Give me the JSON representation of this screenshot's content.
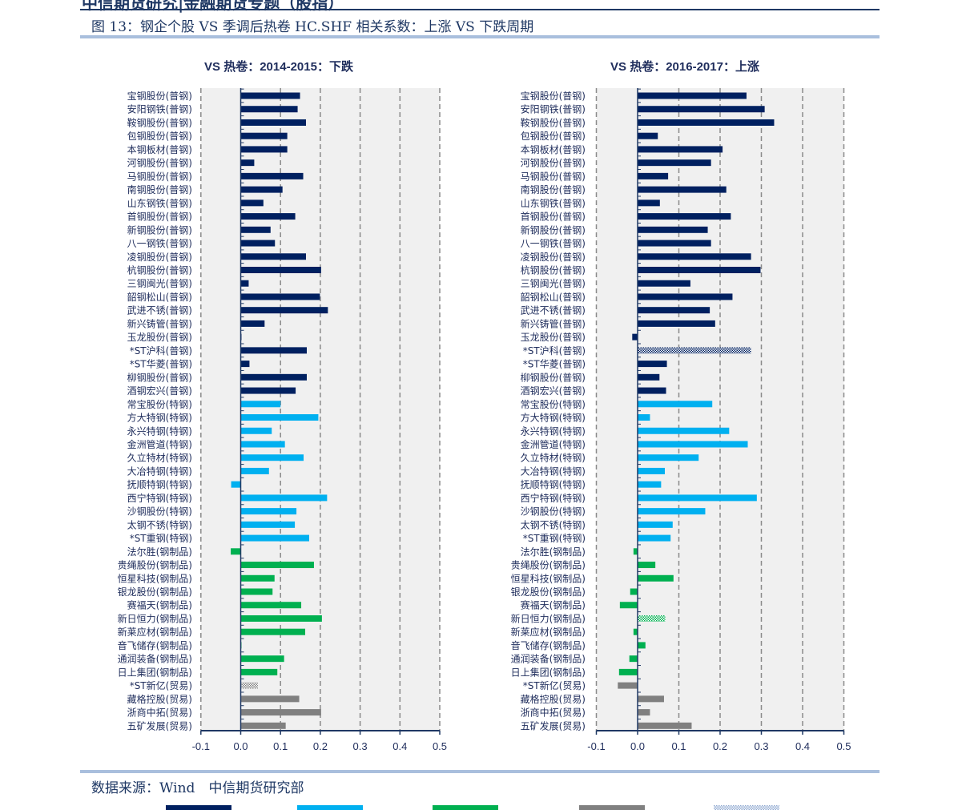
{
  "header": {
    "clipped_text": "中信期货研究|金融期货专题（股指）",
    "figure_title": "图 13：钢企个股 VS 季调后热卷 HC.SHF 相关系数：上涨 VS 下跌周期"
  },
  "source": "数据来源：Wind　中信期货研究部",
  "colors": {
    "普钢": "#002060",
    "特钢": "#00b0f0",
    "钢制品": "#00b050",
    "贸易": "#808080",
    "axis": "#1f3864",
    "plot_bg": "#f0f0f0"
  },
  "chart_data": [
    {
      "type": "bar",
      "orientation": "horizontal",
      "title": "VS 热卷：2014-2015：下跌",
      "xlim": [
        -0.1,
        0.5
      ],
      "xticks": [
        "-0.1",
        "0.0",
        "0.1",
        "0.2",
        "0.3",
        "0.4",
        "0.5"
      ],
      "grid": true,
      "categories": [
        "宝钢股份(普钢)",
        "安阳钢铁(普钢)",
        "鞍钢股份(普钢)",
        "包钢股份(普钢)",
        "本钢板材(普钢)",
        "河钢股份(普钢)",
        "马钢股份(普钢)",
        "南钢股份(普钢)",
        "山东钢铁(普钢)",
        "首钢股份(普钢)",
        "新钢股份(普钢)",
        "八一钢铁(普钢)",
        "凌钢股份(普钢)",
        "杭钢股份(普钢)",
        "三钢闽光(普钢)",
        "韶钢松山(普钢)",
        "武进不锈(普钢)",
        "新兴铸管(普钢)",
        "玉龙股份(普钢)",
        "*ST沪科(普钢)",
        "*ST华菱(普钢)",
        "柳钢股份(普钢)",
        "酒钢宏兴(普钢)",
        "常宝股份(特钢)",
        "方大特钢(特钢)",
        "永兴特钢(特钢)",
        "金洲管道(特钢)",
        "久立特材(特钢)",
        "大冶特钢(特钢)",
        "抚顺特钢(特钢)",
        "西宁特钢(特钢)",
        "沙钢股份(特钢)",
        "太钢不锈(特钢)",
        "*ST重钢(特钢)",
        "法尔胜(钢制品)",
        "贵绳股份(钢制品)",
        "恒星科技(钢制品)",
        "银龙股份(钢制品)",
        "赛福天(钢制品)",
        "新日恒力(钢制品)",
        "新莱应材(钢制品)",
        "音飞储存(钢制品)",
        "通润装备(钢制品)",
        "日上集团(钢制品)",
        "*ST新亿(贸易)",
        "藏格控股(贸易)",
        "浙商中拓(贸易)",
        "五矿发展(贸易)"
      ],
      "values": [
        0.149,
        0.143,
        0.164,
        0.117,
        0.117,
        0.034,
        0.157,
        0.105,
        0.057,
        0.137,
        0.075,
        0.086,
        0.164,
        0.202,
        0.02,
        0.199,
        0.219,
        0.06,
        0.002,
        0.166,
        0.022,
        0.166,
        0.138,
        0.1,
        0.195,
        0.078,
        0.111,
        0.158,
        0.071,
        -0.024,
        0.217,
        0.14,
        0.136,
        0.172,
        -0.025,
        0.184,
        0.085,
        0.08,
        0.152,
        0.204,
        0.162,
        0.0,
        0.109,
        0.092,
        0.043,
        0.147,
        0.202,
        0.113
      ],
      "hatched": [
        "*ST新亿(贸易)"
      ]
    },
    {
      "type": "bar",
      "orientation": "horizontal",
      "title": "VS 热卷：2016-2017：上涨",
      "xlim": [
        -0.1,
        0.5
      ],
      "xticks": [
        "-0.1",
        "0.0",
        "0.1",
        "0.2",
        "0.3",
        "0.4",
        "0.5"
      ],
      "grid": true,
      "categories": [
        "宝钢股份(普钢)",
        "安阳钢铁(普钢)",
        "鞍钢股份(普钢)",
        "包钢股份(普钢)",
        "本钢板材(普钢)",
        "河钢股份(普钢)",
        "马钢股份(普钢)",
        "南钢股份(普钢)",
        "山东钢铁(普钢)",
        "首钢股份(普钢)",
        "新钢股份(普钢)",
        "八一钢铁(普钢)",
        "凌钢股份(普钢)",
        "杭钢股份(普钢)",
        "三钢闽光(普钢)",
        "韶钢松山(普钢)",
        "武进不锈(普钢)",
        "新兴铸管(普钢)",
        "玉龙股份(普钢)",
        "*ST沪科(普钢)",
        "*ST华菱(普钢)",
        "柳钢股份(普钢)",
        "酒钢宏兴(普钢)",
        "常宝股份(特钢)",
        "方大特钢(特钢)",
        "永兴特钢(特钢)",
        "金洲管道(特钢)",
        "久立特材(特钢)",
        "大冶特钢(特钢)",
        "抚顺特钢(特钢)",
        "西宁特钢(特钢)",
        "沙钢股份(特钢)",
        "太钢不锈(特钢)",
        "*ST重钢(特钢)",
        "法尔胜(钢制品)",
        "贵绳股份(钢制品)",
        "恒星科技(钢制品)",
        "银龙股份(钢制品)",
        "赛福天(钢制品)",
        "新日恒力(钢制品)",
        "新莱应材(钢制品)",
        "音飞储存(钢制品)",
        "通润装备(钢制品)",
        "日上集团(钢制品)",
        "*ST新亿(贸易)",
        "藏格控股(贸易)",
        "浙商中拓(贸易)",
        "五矿发展(贸易)"
      ],
      "values": [
        0.264,
        0.308,
        0.331,
        0.049,
        0.206,
        0.178,
        0.074,
        0.215,
        0.054,
        0.226,
        0.17,
        0.178,
        0.275,
        0.298,
        0.128,
        0.23,
        0.175,
        0.188,
        -0.013,
        0.275,
        0.071,
        0.053,
        0.069,
        0.181,
        0.03,
        0.222,
        0.267,
        0.148,
        0.066,
        0.057,
        0.289,
        0.164,
        0.085,
        0.08,
        -0.01,
        0.043,
        0.087,
        -0.018,
        -0.043,
        0.067,
        -0.01,
        0.019,
        -0.02,
        -0.045,
        -0.048,
        0.064,
        0.03,
        0.131
      ],
      "hatched": [
        "*ST沪科(普钢)",
        "新日恒力(钢制品)"
      ]
    }
  ],
  "legend": [
    {
      "key": "普钢",
      "hatched": false
    },
    {
      "key": "特钢",
      "hatched": false
    },
    {
      "key": "钢制品",
      "hatched": false
    },
    {
      "key": "贸易",
      "hatched": false
    },
    {
      "key": "hatched",
      "hatched": true
    }
  ]
}
